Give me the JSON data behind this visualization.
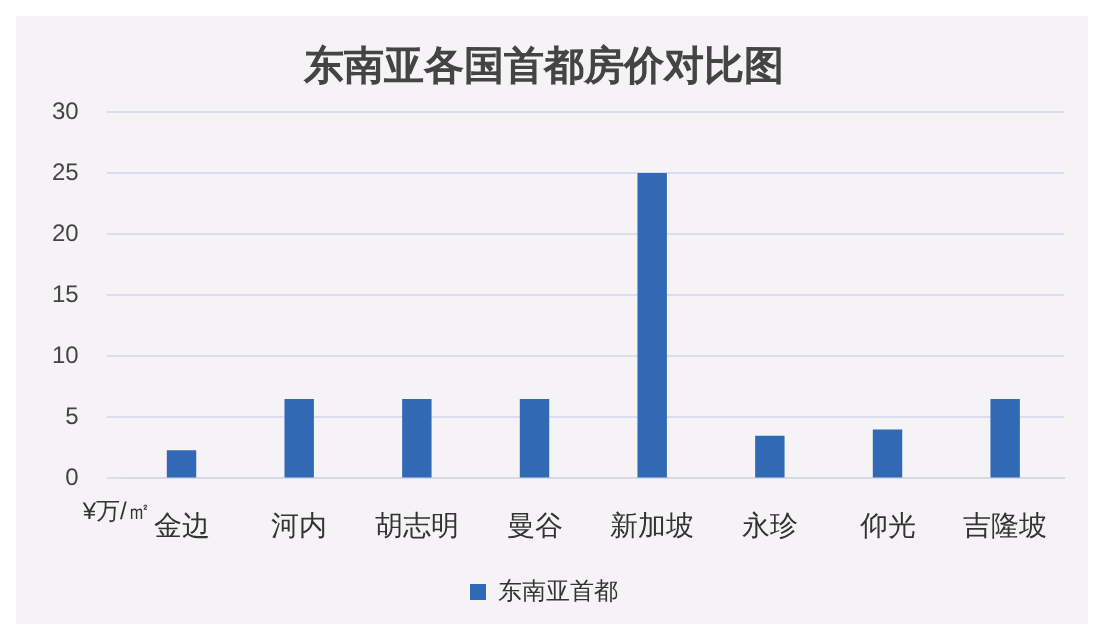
{
  "chart_data": {
    "type": "bar",
    "title": "东南亚各国首都房价对比图",
    "ylabel": "¥万/㎡",
    "categories": [
      "金边",
      "河内",
      "胡志明",
      "曼谷",
      "新加坡",
      "永珍",
      "仰光",
      "吉隆坡"
    ],
    "series": [
      {
        "name": "东南亚首都",
        "color": "#3169b5",
        "values": [
          2.3,
          6.5,
          6.5,
          6.5,
          25,
          3.5,
          4,
          6.5
        ]
      }
    ],
    "ylim": [
      0,
      30
    ],
    "yticks": [
      0,
      5,
      10,
      15,
      20,
      25,
      30
    ],
    "grid": "y",
    "legend": "bottom"
  }
}
